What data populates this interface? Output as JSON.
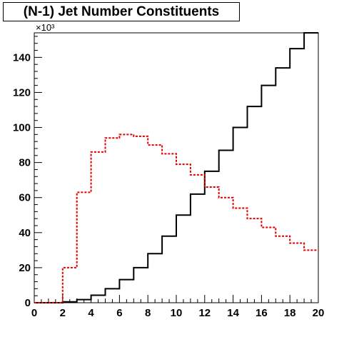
{
  "chart_data": {
    "type": "line",
    "title": "(N-1) Jet Number Constituents",
    "xlabel": "",
    "ylabel": "",
    "y_multiplier_label": "×10³",
    "xlim": [
      0,
      20
    ],
    "ylim": [
      0,
      154
    ],
    "x_ticks": [
      0,
      2,
      4,
      6,
      8,
      10,
      12,
      14,
      16,
      18,
      20
    ],
    "y_ticks": [
      0,
      20,
      40,
      60,
      80,
      100,
      120,
      140
    ],
    "grid": false,
    "legend": "none",
    "bin_edges": [
      0,
      1,
      2,
      3,
      4,
      5,
      6,
      7,
      8,
      9,
      10,
      11,
      12,
      13,
      14,
      15,
      16,
      17,
      18,
      19,
      20
    ],
    "series": [
      {
        "style": "solid",
        "color": "#000000",
        "values": [
          0,
          0,
          0.5,
          1.8,
          4.3,
          8,
          13.2,
          20,
          28,
          38,
          50,
          62,
          75,
          87,
          100,
          112,
          124,
          134,
          145,
          154
        ]
      },
      {
        "style": "dotted",
        "color": "#e00000",
        "values": [
          0,
          0,
          20,
          63,
          86,
          94,
          96,
          95,
          90,
          85,
          79,
          73,
          66,
          60,
          54,
          48,
          43,
          38,
          34,
          30
        ]
      }
    ]
  }
}
